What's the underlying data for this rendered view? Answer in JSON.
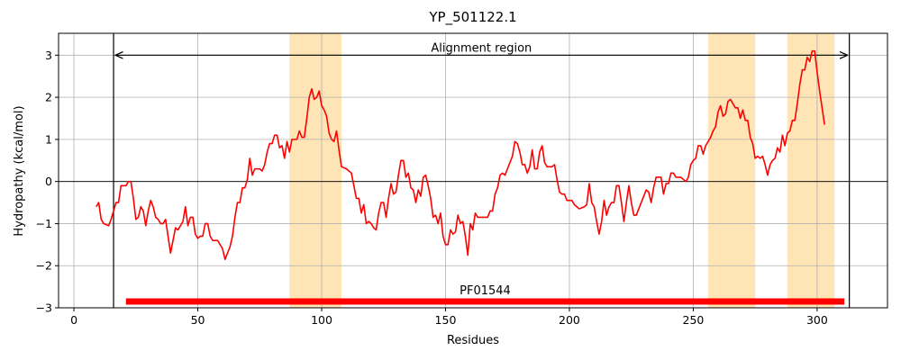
{
  "chart_data": {
    "type": "line",
    "title": "YP_501122.1",
    "x_label": "Residues",
    "y_label": "Hydropathy (kcal/mol)",
    "x": [
      9,
      10,
      11,
      12,
      14,
      15,
      17,
      18,
      19,
      21,
      22,
      23,
      24,
      25,
      26,
      27,
      28,
      29,
      30,
      31,
      32,
      33,
      34,
      35,
      36,
      37,
      38,
      39,
      41,
      42,
      44,
      45,
      46,
      47,
      48,
      49,
      50,
      51,
      52,
      53,
      54,
      55,
      56,
      58,
      60,
      61,
      63,
      64,
      65,
      66,
      67,
      68,
      69,
      70,
      71,
      72,
      73,
      75,
      76,
      77,
      78,
      79,
      80,
      81,
      82,
      83,
      84,
      85,
      86,
      87,
      88,
      90,
      91,
      92,
      93,
      94,
      95,
      96,
      97,
      98,
      99,
      100,
      101,
      102,
      103,
      104,
      105,
      106,
      107,
      108,
      110,
      112,
      113,
      114,
      115,
      116,
      117,
      118,
      119,
      120,
      121,
      122,
      123,
      124,
      125,
      126,
      127,
      128,
      129,
      130,
      131,
      132,
      133,
      134,
      135,
      136,
      137,
      138,
      139,
      140,
      141,
      142,
      143,
      144,
      145,
      146,
      147,
      148,
      149,
      150,
      151,
      152,
      153,
      154,
      155,
      156,
      157,
      158,
      159,
      160,
      161,
      162,
      163,
      165,
      167,
      168,
      169,
      170,
      171,
      172,
      173,
      174,
      175,
      177,
      178,
      179,
      180,
      181,
      182,
      183,
      184,
      185,
      186,
      187,
      188,
      189,
      190,
      191,
      192,
      193,
      194,
      195,
      196,
      197,
      198,
      199,
      201,
      202,
      203,
      204,
      206,
      207,
      208,
      209,
      210,
      211,
      212,
      213,
      214,
      215,
      216,
      217,
      218,
      219,
      220,
      221,
      222,
      223,
      224,
      225,
      226,
      227,
      228,
      229,
      230,
      231,
      232,
      233,
      234,
      235,
      236,
      237,
      238,
      239,
      240,
      241,
      242,
      243,
      245,
      246,
      247,
      248,
      249,
      250,
      251,
      252,
      253,
      254,
      255,
      256,
      257,
      258,
      259,
      260,
      261,
      262,
      263,
      264,
      265,
      266,
      267,
      268,
      269,
      270,
      271,
      272,
      273,
      274,
      275,
      276,
      277,
      278,
      279,
      280,
      281,
      282,
      283,
      284,
      285,
      286,
      287,
      288,
      289,
      290,
      291,
      292,
      293,
      294,
      295,
      296,
      297,
      298,
      299,
      300,
      301,
      302,
      303
    ],
    "series": [
      {
        "color": "#ff0000",
        "values": [
          -0.6,
          -0.5,
          -0.9,
          -1.0,
          -1.05,
          -0.9,
          -0.5,
          -0.5,
          -0.1,
          -0.1,
          0.0,
          0.0,
          -0.4,
          -0.9,
          -0.85,
          -0.6,
          -0.7,
          -1.05,
          -0.7,
          -0.45,
          -0.6,
          -0.85,
          -0.9,
          -1.0,
          -1.0,
          -0.9,
          -1.3,
          -1.7,
          -1.1,
          -1.15,
          -0.95,
          -0.6,
          -1.05,
          -0.85,
          -0.85,
          -1.25,
          -1.35,
          -1.3,
          -1.3,
          -1.0,
          -1.0,
          -1.3,
          -1.4,
          -1.4,
          -1.6,
          -1.85,
          -1.55,
          -1.3,
          -0.85,
          -0.5,
          -0.5,
          -0.15,
          -0.15,
          0.05,
          0.55,
          0.15,
          0.3,
          0.3,
          0.25,
          0.4,
          0.7,
          0.9,
          0.9,
          1.1,
          1.1,
          0.8,
          0.85,
          0.55,
          0.95,
          0.7,
          1.0,
          1.0,
          1.2,
          1.05,
          1.05,
          1.5,
          2.0,
          2.2,
          1.95,
          2.0,
          2.15,
          1.8,
          1.7,
          1.55,
          1.15,
          1.0,
          0.95,
          1.2,
          0.75,
          0.35,
          0.3,
          0.2,
          -0.1,
          -0.4,
          -0.4,
          -0.75,
          -0.55,
          -1.0,
          -0.95,
          -1.0,
          -1.1,
          -1.15,
          -0.75,
          -0.5,
          -0.5,
          -0.85,
          -0.4,
          -0.05,
          -0.3,
          -0.25,
          0.15,
          0.5,
          0.5,
          0.1,
          0.2,
          -0.15,
          -0.2,
          -0.5,
          -0.2,
          -0.35,
          0.1,
          0.15,
          -0.1,
          -0.4,
          -0.85,
          -0.8,
          -1.0,
          -0.75,
          -1.3,
          -1.5,
          -1.5,
          -1.15,
          -1.25,
          -1.2,
          -0.8,
          -1.0,
          -0.95,
          -1.3,
          -1.75,
          -1.0,
          -1.15,
          -0.75,
          -0.85,
          -0.85,
          -0.85,
          -0.7,
          -0.7,
          -0.3,
          -0.15,
          0.15,
          0.2,
          0.15,
          0.3,
          0.6,
          0.95,
          0.9,
          0.7,
          0.4,
          0.4,
          0.2,
          0.35,
          0.75,
          0.3,
          0.3,
          0.7,
          0.85,
          0.45,
          0.35,
          0.35,
          0.35,
          0.4,
          0.05,
          -0.25,
          -0.3,
          -0.3,
          -0.45,
          -0.45,
          -0.55,
          -0.6,
          -0.65,
          -0.6,
          -0.55,
          -0.05,
          -0.5,
          -0.6,
          -0.95,
          -1.25,
          -0.95,
          -0.45,
          -0.8,
          -0.6,
          -0.5,
          -0.5,
          -0.1,
          -0.1,
          -0.5,
          -0.95,
          -0.5,
          -0.1,
          -0.5,
          -0.8,
          -0.8,
          -0.65,
          -0.5,
          -0.35,
          -0.2,
          -0.25,
          -0.5,
          -0.15,
          0.1,
          0.1,
          0.1,
          -0.3,
          -0.05,
          -0.05,
          0.2,
          0.2,
          0.1,
          0.1,
          0.05,
          0.0,
          0.1,
          0.4,
          0.5,
          0.55,
          0.85,
          0.85,
          0.65,
          0.85,
          0.95,
          1.05,
          1.2,
          1.3,
          1.65,
          1.8,
          1.55,
          1.6,
          1.9,
          1.95,
          1.85,
          1.75,
          1.75,
          1.5,
          1.7,
          1.45,
          1.45,
          1.05,
          0.9,
          0.55,
          0.6,
          0.55,
          0.6,
          0.4,
          0.15,
          0.4,
          0.5,
          0.55,
          0.8,
          0.7,
          1.1,
          0.85,
          1.15,
          1.2,
          1.45,
          1.45,
          1.85,
          2.3,
          2.65,
          2.65,
          2.95,
          2.85,
          3.1,
          3.1,
          2.6,
          2.15,
          1.75,
          1.35
        ]
      }
    ],
    "xlim": [
      -6.2,
      328.4
    ],
    "ylim": [
      -3,
      3.52
    ],
    "xticks": [
      0,
      50,
      100,
      150,
      200,
      250,
      300
    ],
    "yticks": [
      {
        "value": -3,
        "label": "−3"
      },
      {
        "value": -2,
        "label": "−2"
      },
      {
        "value": -1,
        "label": "−1"
      },
      0,
      1,
      2,
      3
    ],
    "grid": true,
    "zero_line": 0,
    "spans": [
      [
        87,
        108
      ],
      [
        256,
        275
      ],
      [
        288,
        307
      ]
    ],
    "span_color": "#ffe4b5",
    "vlines": [
      16,
      313
    ],
    "annotation": {
      "text": "Alignment region",
      "x": [
        16,
        313
      ],
      "y": 3
    },
    "domain": {
      "label": "PF01544",
      "start": 21,
      "end": 311,
      "y": -2.85,
      "color": "#ff0000"
    }
  }
}
